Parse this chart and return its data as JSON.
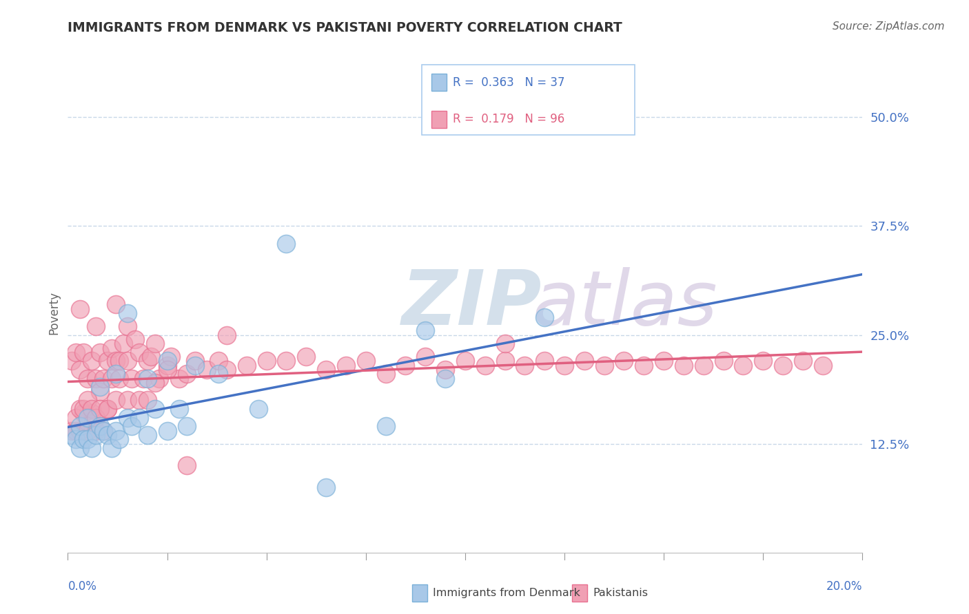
{
  "title": "IMMIGRANTS FROM DENMARK VS PAKISTANI POVERTY CORRELATION CHART",
  "source": "Source: ZipAtlas.com",
  "ylabel": "Poverty",
  "xlim": [
    0.0,
    0.2
  ],
  "ylim": [
    0.0,
    0.55
  ],
  "yticks": [
    0.125,
    0.25,
    0.375,
    0.5
  ],
  "ytick_labels": [
    "12.5%",
    "25.0%",
    "37.5%",
    "50.0%"
  ],
  "denmark_color": "#a8c8e8",
  "pakistan_color": "#f0a0b4",
  "denmark_edge_color": "#7ab0d8",
  "pakistan_edge_color": "#e87090",
  "denmark_line_color": "#4472c4",
  "pakistan_line_color": "#e06080",
  "background_color": "#ffffff",
  "grid_color": "#c8d8e8",
  "title_color": "#333333",
  "source_color": "#666666",
  "ylabel_color": "#666666",
  "ytick_color": "#4472c4",
  "xlabel_color": "#4472c4",
  "watermark_zip_color": "#c0d4e8",
  "watermark_atlas_color": "#d4c8e0",
  "legend_edge_color": "#aaccee",
  "legend_text_color_1": "#4472c4",
  "legend_text_color_2": "#e06080",
  "denmark_x": [
    0.001,
    0.002,
    0.003,
    0.003,
    0.004,
    0.005,
    0.005,
    0.006,
    0.007,
    0.008,
    0.008,
    0.009,
    0.01,
    0.011,
    0.012,
    0.012,
    0.013,
    0.015,
    0.016,
    0.018,
    0.02,
    0.022,
    0.025,
    0.028,
    0.03,
    0.032,
    0.015,
    0.02,
    0.025,
    0.038,
    0.048,
    0.055,
    0.065,
    0.08,
    0.09,
    0.095,
    0.12
  ],
  "denmark_y": [
    0.135,
    0.13,
    0.12,
    0.145,
    0.13,
    0.155,
    0.13,
    0.12,
    0.135,
    0.145,
    0.19,
    0.14,
    0.135,
    0.12,
    0.14,
    0.205,
    0.13,
    0.155,
    0.145,
    0.155,
    0.135,
    0.165,
    0.14,
    0.165,
    0.145,
    0.215,
    0.275,
    0.2,
    0.22,
    0.205,
    0.165,
    0.355,
    0.075,
    0.145,
    0.255,
    0.2,
    0.27
  ],
  "pakistan_x": [
    0.001,
    0.001,
    0.002,
    0.002,
    0.003,
    0.003,
    0.003,
    0.004,
    0.004,
    0.005,
    0.005,
    0.005,
    0.006,
    0.006,
    0.007,
    0.007,
    0.007,
    0.008,
    0.008,
    0.009,
    0.009,
    0.01,
    0.01,
    0.011,
    0.011,
    0.012,
    0.012,
    0.013,
    0.013,
    0.014,
    0.015,
    0.015,
    0.016,
    0.017,
    0.018,
    0.019,
    0.02,
    0.021,
    0.022,
    0.023,
    0.025,
    0.026,
    0.028,
    0.03,
    0.032,
    0.035,
    0.038,
    0.04,
    0.045,
    0.05,
    0.055,
    0.06,
    0.065,
    0.07,
    0.075,
    0.08,
    0.085,
    0.09,
    0.095,
    0.1,
    0.105,
    0.11,
    0.115,
    0.12,
    0.125,
    0.13,
    0.135,
    0.14,
    0.145,
    0.15,
    0.155,
    0.16,
    0.165,
    0.17,
    0.175,
    0.18,
    0.185,
    0.19,
    0.002,
    0.003,
    0.004,
    0.005,
    0.006,
    0.007,
    0.008,
    0.01,
    0.012,
    0.015,
    0.018,
    0.02,
    0.022,
    0.025,
    0.03,
    0.04,
    0.11
  ],
  "pakistan_y": [
    0.14,
    0.22,
    0.14,
    0.23,
    0.14,
    0.21,
    0.28,
    0.16,
    0.23,
    0.15,
    0.2,
    0.14,
    0.16,
    0.22,
    0.14,
    0.2,
    0.26,
    0.185,
    0.23,
    0.2,
    0.14,
    0.22,
    0.165,
    0.2,
    0.235,
    0.22,
    0.285,
    0.22,
    0.2,
    0.24,
    0.22,
    0.26,
    0.2,
    0.245,
    0.23,
    0.2,
    0.22,
    0.225,
    0.24,
    0.2,
    0.215,
    0.225,
    0.2,
    0.205,
    0.22,
    0.21,
    0.22,
    0.21,
    0.215,
    0.22,
    0.22,
    0.225,
    0.21,
    0.215,
    0.22,
    0.205,
    0.215,
    0.225,
    0.21,
    0.22,
    0.215,
    0.22,
    0.215,
    0.22,
    0.215,
    0.22,
    0.215,
    0.22,
    0.215,
    0.22,
    0.215,
    0.215,
    0.22,
    0.215,
    0.22,
    0.215,
    0.22,
    0.215,
    0.155,
    0.165,
    0.165,
    0.175,
    0.165,
    0.155,
    0.165,
    0.165,
    0.175,
    0.175,
    0.175,
    0.175,
    0.195,
    0.21,
    0.1,
    0.25,
    0.24
  ]
}
